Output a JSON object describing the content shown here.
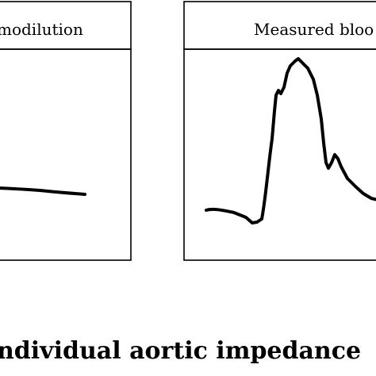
{
  "panels": [
    {
      "title": "modilution"
    },
    {
      "title": "Measured bloo"
    }
  ],
  "caption": "ndividual aortic impedance"
}
